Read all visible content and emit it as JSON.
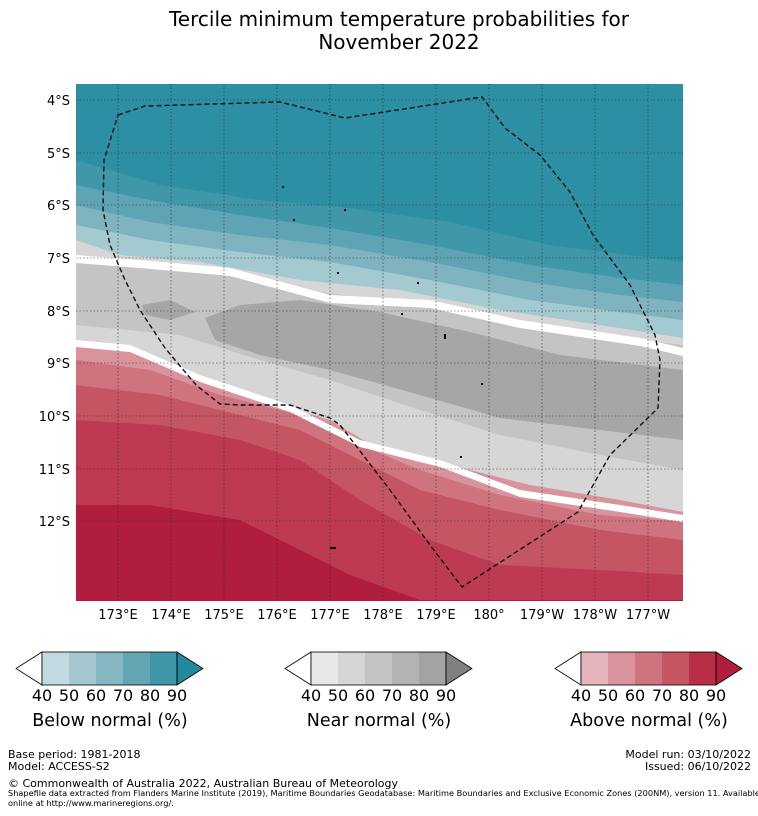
{
  "title_line1": "Tercile minimum temperature probabilities for",
  "title_line2": "November 2022",
  "map": {
    "lat_labels": [
      "4°S",
      "5°S",
      "6°S",
      "7°S",
      "8°S",
      "9°S",
      "10°S",
      "11°S",
      "12°S"
    ],
    "lon_labels": [
      "173°E",
      "174°E",
      "175°E",
      "176°E",
      "177°E",
      "178°E",
      "179°E",
      "180°",
      "179°W",
      "178°W",
      "177°W"
    ],
    "boundary": "Tuvalu EEZ (dashed)"
  },
  "colorbars": [
    {
      "label": "Below normal (%)",
      "ticks": [
        "40",
        "50",
        "60",
        "70",
        "80",
        "90"
      ],
      "colors": [
        "#ffffff",
        "#c2d9df",
        "#a5c8d0",
        "#87b7c2",
        "#63a5b3",
        "#3f97a9",
        "#22889b"
      ]
    },
    {
      "label": "Near normal (%)",
      "ticks": [
        "40",
        "50",
        "60",
        "70",
        "80",
        "90"
      ],
      "colors": [
        "#ffffff",
        "#e8e8e8",
        "#d6d6d6",
        "#c4c4c4",
        "#b3b3b3",
        "#a3a3a3",
        "#808080"
      ]
    },
    {
      "label": "Above normal (%)",
      "ticks": [
        "40",
        "50",
        "60",
        "70",
        "80",
        "90"
      ],
      "colors": [
        "#ffffff",
        "#e3b4bb",
        "#d8939c",
        "#cf737f",
        "#c55563",
        "#b92e47",
        "#b01d3d"
      ]
    }
  ],
  "footer": {
    "base_period": "Base period: 1981-2018",
    "model": "Model: ACCESS-S2",
    "model_run": "Model run: 03/10/2022",
    "issued": "Issued: 06/10/2022",
    "copyright": "© Commonwealth of Australia 2022, Australian Bureau of Meteorology",
    "shapefile_credit": "Shapefile data extracted from Flanders Marine Institute (2019), Maritime Boundaries Geodatabase: Maritime Boundaries and Exclusive Economic Zones (200NM), version 11. Available online at http://www.marineregions.org/."
  },
  "colors": {
    "teal_dark": "#2c8fa3",
    "teal_1": "#3f97a9",
    "teal_2": "#5ea4b4",
    "teal_3": "#7fb3c0",
    "teal_4": "#a3c9d1",
    "grey_light": "#d6d6d6",
    "grey_mid": "#c4c4c4",
    "grey_dark": "#a6a6a6",
    "red_1": "#d99aa3",
    "red_2": "#cf737f",
    "red_3": "#c55563",
    "red_4": "#bd3a52",
    "red_5": "#b01d3d"
  }
}
